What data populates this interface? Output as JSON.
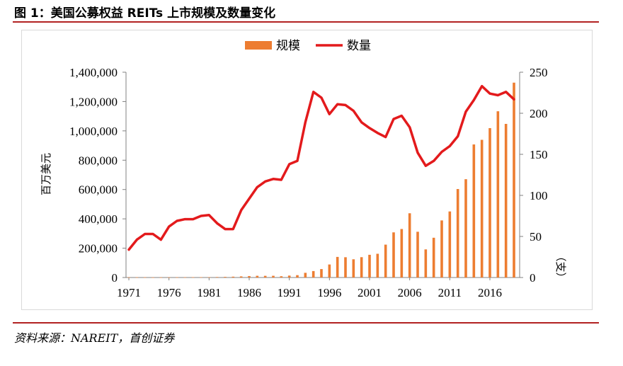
{
  "figure": {
    "title": "图 1：美国公募权益 REITs 上市规模及数量变化",
    "source": "资料来源：NAREIT，首创证券"
  },
  "colors": {
    "bar": "#ED7D31",
    "line": "#E31A1C",
    "rule": "#B22222",
    "axis": "#808080"
  },
  "chart_data": {
    "type": "bar+line",
    "x": [
      1971,
      1972,
      1973,
      1974,
      1975,
      1976,
      1977,
      1978,
      1979,
      1980,
      1981,
      1982,
      1983,
      1984,
      1985,
      1986,
      1987,
      1988,
      1989,
      1990,
      1991,
      1992,
      1993,
      1994,
      1995,
      1996,
      1997,
      1998,
      1999,
      2000,
      2001,
      2002,
      2003,
      2004,
      2005,
      2006,
      2007,
      2008,
      2009,
      2010,
      2011,
      2012,
      2013,
      2014,
      2015,
      2016,
      2017,
      2018,
      2019
    ],
    "xticks": [
      "1971",
      "1976",
      "1981",
      "1986",
      "1991",
      "1996",
      "2001",
      "2006",
      "2011",
      "2016"
    ],
    "series": [
      {
        "name": "规模",
        "type": "bar",
        "axis": "left",
        "values": [
          1500,
          1500,
          1500,
          700,
          900,
          1300,
          1500,
          1600,
          2200,
          2300,
          2400,
          3300,
          4300,
          5700,
          7700,
          9900,
          11700,
          11500,
          11700,
          8700,
          13000,
          16000,
          32000,
          44000,
          57500,
          88800,
          140500,
          138300,
          124300,
          138700,
          154900,
          161900,
          224200,
          307900,
          330700,
          438100,
          312000,
          191700,
          271200,
          389300,
          450500,
          603400,
          670300,
          907400,
          938900,
          1018700,
          1133700,
          1047600,
          1328800
        ]
      },
      {
        "name": "数量",
        "type": "line",
        "axis": "right",
        "values": [
          34,
          46,
          53,
          53,
          46,
          62,
          69,
          71,
          71,
          75,
          76,
          66,
          59,
          59,
          82,
          96,
          110,
          117,
          120,
          119,
          138,
          142,
          189,
          226,
          219,
          199,
          211,
          210,
          203,
          189,
          182,
          176,
          171,
          193,
          197,
          183,
          152,
          136,
          142,
          153,
          160,
          172,
          202,
          216,
          233,
          224,
          222,
          226,
          217
        ]
      }
    ],
    "y_left": {
      "label": "百万美元",
      "lim": [
        0,
        1400000
      ],
      "ticks": [
        "0",
        "200,000",
        "400,000",
        "600,000",
        "800,000",
        "1,000,000",
        "1,200,000",
        "1,400,000"
      ]
    },
    "y_right": {
      "label": "（支）",
      "lim": [
        0,
        250
      ],
      "ticks": [
        "0",
        "50",
        "100",
        "150",
        "200",
        "250"
      ]
    },
    "legend": {
      "position": "top-center",
      "bar_label": "规模",
      "line_label": "数量"
    }
  }
}
